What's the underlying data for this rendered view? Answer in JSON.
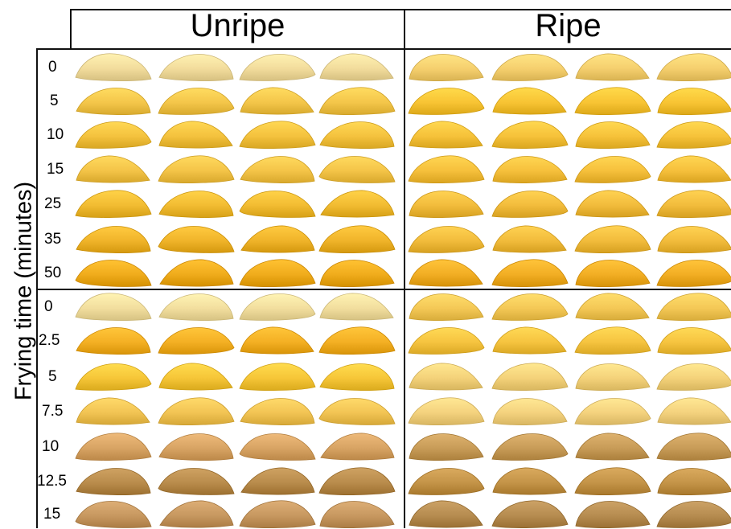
{
  "columns": {
    "unripe": "Unripe",
    "ripe": "Ripe"
  },
  "y_axis_label": "Frying time (minutes)",
  "top_panel": {
    "times": [
      "0",
      "5",
      "10",
      "15",
      "25",
      "35",
      "50"
    ],
    "rows": {
      "0": {
        "unripe": "#f2dc9c",
        "ripe": "#f5cf6e"
      },
      "5": {
        "unripe": "#f4c64a",
        "ripe": "#f8c434"
      },
      "10": {
        "unripe": "#f4c23e",
        "ripe": "#f6c23a"
      },
      "15": {
        "unripe": "#f4c448",
        "ripe": "#f6c03c"
      },
      "25": {
        "unripe": "#f2bc32",
        "ripe": "#f2bc3c"
      },
      "35": {
        "unripe": "#f0b42a",
        "ripe": "#f2bc3c"
      },
      "50": {
        "unripe": "#f0ac1c",
        "ripe": "#f2ae24"
      }
    }
  },
  "bottom_panel": {
    "times": [
      "0",
      "2.5",
      "5",
      "7.5",
      "10",
      "12.5",
      "15"
    ],
    "rows": {
      "0": {
        "unripe": "#f2de9e",
        "ripe": "#f4c856"
      },
      "2.5": {
        "unripe": "#f4b024",
        "ripe": "#f6c440"
      },
      "5": {
        "unripe": "#f6c638",
        "ripe": "#f4d27a"
      },
      "7.5": {
        "unripe": "#f2c454",
        "ripe": "#f4d27e"
      },
      "10": {
        "unripe": "#d8a464",
        "ripe": "#c89c58"
      },
      "12.5": {
        "unripe": "#b98c4c",
        "ripe": "#c49448"
      },
      "15": {
        "unripe": "#c79860",
        "ripe": "#b68c50"
      }
    }
  }
}
